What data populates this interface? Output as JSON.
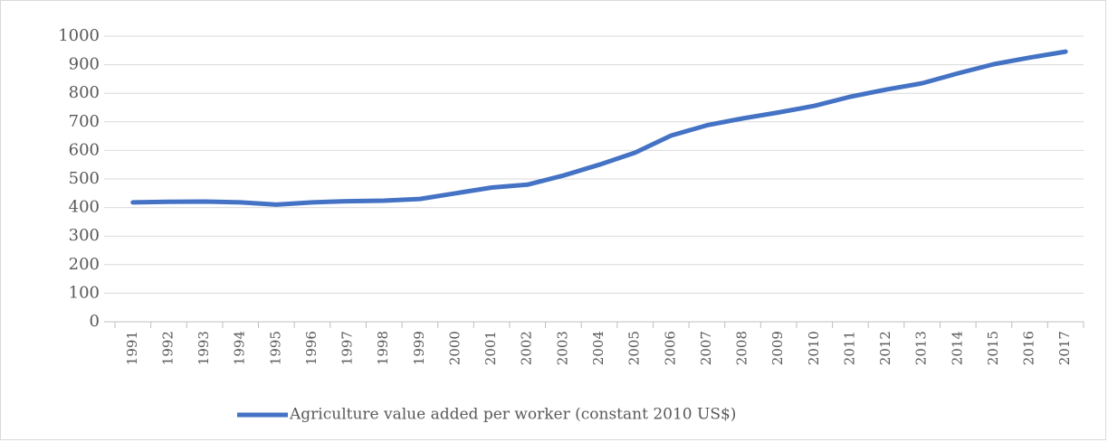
{
  "chart_data": {
    "type": "line",
    "categories": [
      "1991",
      "1992",
      "1993",
      "1994",
      "1995",
      "1996",
      "1997",
      "1998",
      "1999",
      "2000",
      "2001",
      "2002",
      "2003",
      "2004",
      "2005",
      "2006",
      "2007",
      "2008",
      "2009",
      "2010",
      "2011",
      "2012",
      "2013",
      "2014",
      "2015",
      "2016",
      "2017"
    ],
    "series": [
      {
        "name": "Agriculture value added per worker (constant 2010 US$)",
        "color": "#4472c4",
        "values": [
          418,
          420,
          421,
          418,
          410,
          418,
          422,
          424,
          430,
          450,
          470,
          480,
          512,
          550,
          592,
          652,
          688,
          712,
          733,
          756,
          788,
          813,
          835,
          870,
          902,
          925,
          946
        ]
      }
    ],
    "ylim": [
      0,
      1000
    ],
    "yticks": [
      0,
      100,
      200,
      300,
      400,
      500,
      600,
      700,
      800,
      900,
      1000
    ],
    "grid": true
  }
}
